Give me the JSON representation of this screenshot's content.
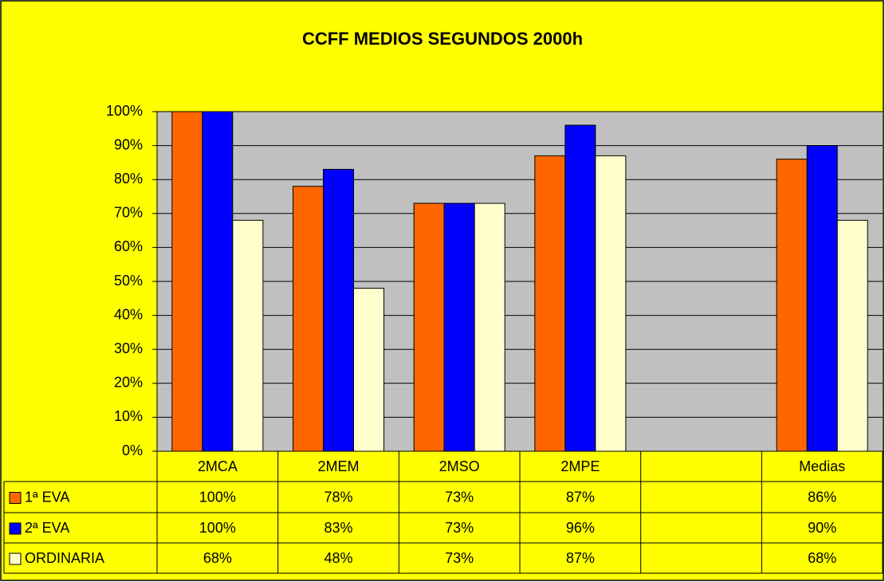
{
  "chart_data": {
    "type": "bar",
    "title": "CCFF MEDIOS SEGUNDOS 2000h",
    "categories": [
      "2MCA",
      "2MEM",
      "2MSO",
      "2MPE",
      null,
      "Medias"
    ],
    "series": [
      {
        "name": "1ª EVA",
        "color": "#ff6600",
        "values": [
          100,
          78,
          73,
          87,
          null,
          86
        ],
        "value_labels": [
          "100%",
          "78%",
          "73%",
          "87%",
          null,
          "86%"
        ]
      },
      {
        "name": "2ª EVA",
        "color": "#0000ff",
        "values": [
          100,
          83,
          73,
          96,
          null,
          90
        ],
        "value_labels": [
          "100%",
          "83%",
          "73%",
          "96%",
          null,
          "90%"
        ]
      },
      {
        "name": "ORDINARIA",
        "color": "#ffffcc",
        "values": [
          68,
          48,
          73,
          87,
          null,
          68
        ],
        "value_labels": [
          "68%",
          "48%",
          "73%",
          "87%",
          null,
          "68%"
        ]
      }
    ],
    "ylim": [
      0,
      100
    ],
    "yticks": [
      {
        "value": 0,
        "label": "0%"
      },
      {
        "value": 10,
        "label": "10%"
      },
      {
        "value": 20,
        "label": "20%"
      },
      {
        "value": 30,
        "label": "30%"
      },
      {
        "value": 40,
        "label": "40%"
      },
      {
        "value": 50,
        "label": "50%"
      },
      {
        "value": 60,
        "label": "60%"
      },
      {
        "value": 70,
        "label": "70%"
      },
      {
        "value": 80,
        "label": "80%"
      },
      {
        "value": 90,
        "label": "90%"
      },
      {
        "value": 100,
        "label": "100%"
      }
    ],
    "grid": true,
    "data_table": true
  }
}
